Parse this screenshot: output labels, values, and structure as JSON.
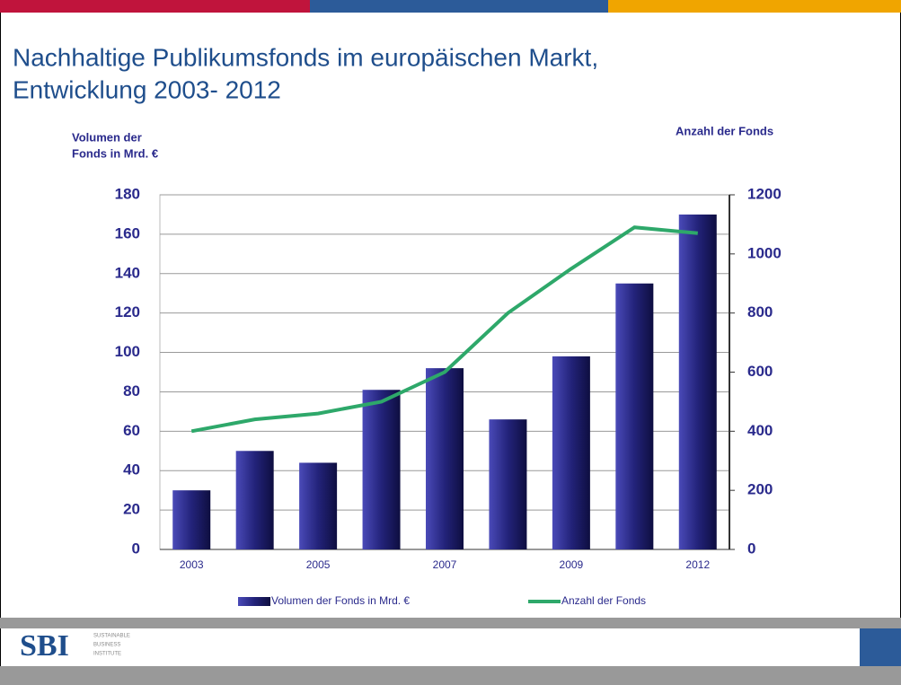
{
  "chart_data": {
    "type": "bar",
    "title": [
      "Nachhaltige Publikumsfonds im europäischen Markt,",
      "Entwicklung 2003- 2012"
    ],
    "ylabel": [
      "Volumen der",
      "Fonds in Mrd. €"
    ],
    "y2label": "Anzahl der Fonds",
    "categories": [
      "2003",
      null,
      "2005",
      null,
      "2007",
      null,
      "2009",
      null,
      "2012"
    ],
    "series": [
      {
        "name": "Volumen der Fonds in Mrd. €",
        "type": "bar",
        "color": "#23237a",
        "values": [
          30,
          50,
          44,
          81,
          92,
          66,
          98,
          135,
          170
        ]
      },
      {
        "name": "Anzahl der Fonds",
        "type": "line",
        "axis": "y2",
        "color": "#2ea86a",
        "values": [
          400,
          440,
          460,
          500,
          600,
          800,
          950,
          1090,
          1070
        ]
      }
    ],
    "ylim": [
      0,
      180
    ],
    "yticks": [
      0,
      20,
      40,
      60,
      80,
      100,
      120,
      140,
      160,
      180
    ],
    "y2lim": [
      0,
      1200
    ],
    "y2ticks": [
      0,
      200,
      400,
      600,
      800,
      1000,
      1200
    ],
    "grid": true,
    "legend": "bottom"
  },
  "footer": {
    "logo": "SBI",
    "institute": [
      "SUSTAINABLE",
      "BUSINESS",
      "INSTITUTE"
    ]
  }
}
